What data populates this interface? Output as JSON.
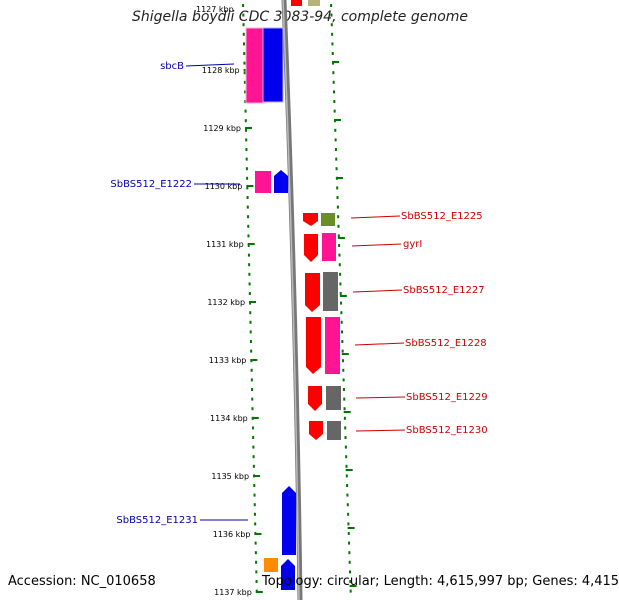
{
  "title": "Shigella boydii CDC 3083-94, complete genome",
  "footer": {
    "accession": "Accession: NC_010658",
    "stats": "Topology: circular; Length: 4,615,997 bp; Genes: 4,415"
  },
  "colors": {
    "left_label": "#0000aa",
    "right_label": "#cc0000",
    "tick": "#007700",
    "backbone": "#888888"
  },
  "ticks": [
    {
      "label": "1128 kbp"
    },
    {
      "label": "1129 kbp"
    },
    {
      "label": "1130 kbp"
    },
    {
      "label": "1131 kbp"
    },
    {
      "label": "1132 kbp"
    },
    {
      "label": "1133 kbp"
    },
    {
      "label": "1134 kbp"
    },
    {
      "label": "1135 kbp"
    },
    {
      "label": "1136 kbp"
    },
    {
      "label": "1137 kbp"
    }
  ],
  "left_gene_labels": [
    {
      "text": "sbcB"
    },
    {
      "text": "SbBS512_E1222"
    },
    {
      "text": "SbBS512_E1231"
    }
  ],
  "right_gene_labels": [
    {
      "text": "SbBS512_E1225"
    },
    {
      "text": "gyrI"
    },
    {
      "text": "SbBS512_E1227"
    },
    {
      "text": "SbBS512_E1228"
    },
    {
      "text": "SbBS512_E1229"
    },
    {
      "text": "SbBS512_E1230"
    }
  ]
}
